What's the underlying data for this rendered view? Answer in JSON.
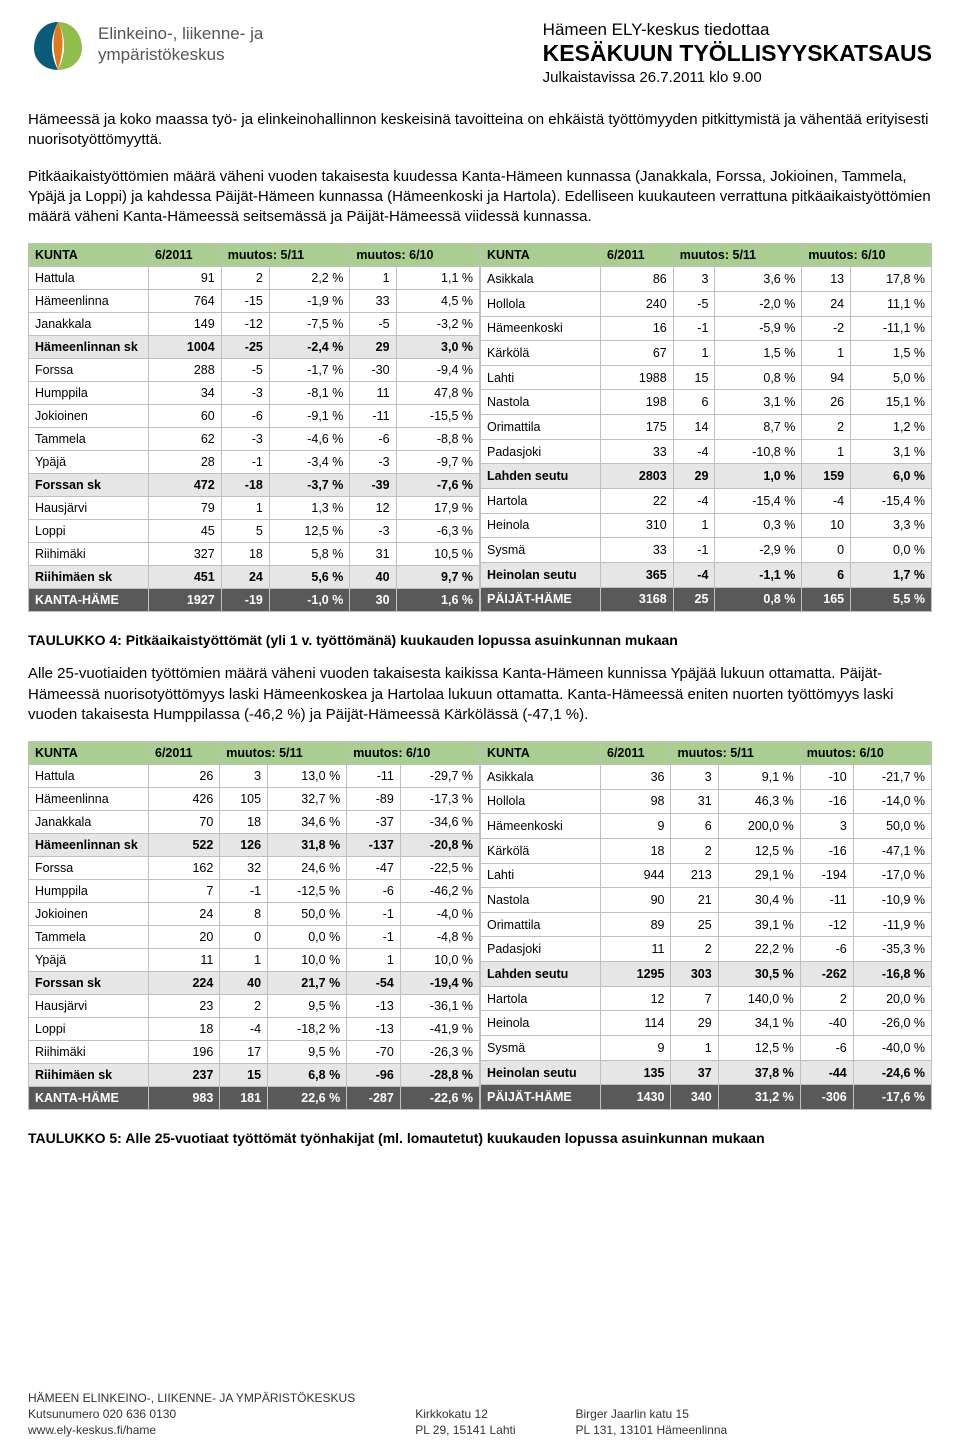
{
  "logo_text": "Elinkeino-, liikenne- ja\nympäristökeskus",
  "header": {
    "line1": "Hämeen ELY-keskus tiedottaa",
    "line2": "KESÄKUUN TYÖLLISYYSKATSAUS",
    "line3": "Julkaistavissa 26.7.2011 klo 9.00"
  },
  "para1": "Hämeessä ja koko maassa työ- ja elinkeinohallinnon keskeisinä tavoitteina on ehkäistä työttömyyden pitkittymistä ja vähentää erityisesti nuorisotyöttömyyttä.",
  "para2": "Pitkäaikaistyöttömien määrä väheni vuoden takaisesta kuudessa Kanta-Hämeen kunnassa (Janakkala, Forssa, Jokioinen, Tammela, Ypäjä ja Loppi) ja kahdessa Päijät-Hämeen kunnassa (Hämeenkoski ja Hartola). Edelliseen kuukauteen verrattuna pitkäaikaistyöttömien määrä väheni Kanta-Hämeessä seitsemässä ja Päijät-Hämeessä viidessä kunnassa.",
  "cols": [
    "KUNTA",
    "6/2011",
    "muutos: 5/11",
    "",
    "muutos: 6/10",
    ""
  ],
  "t4_left": [
    {
      "n": "Hattula",
      "v": [
        "91",
        "2",
        "2,2 %",
        "1",
        "1,1 %"
      ]
    },
    {
      "n": "Hämeenlinna",
      "v": [
        "764",
        "-15",
        "-1,9 %",
        "33",
        "4,5 %"
      ]
    },
    {
      "n": "Janakkala",
      "v": [
        "149",
        "-12",
        "-7,5 %",
        "-5",
        "-3,2 %"
      ]
    },
    {
      "n": "Hämeenlinnan sk",
      "v": [
        "1004",
        "-25",
        "-2,4 %",
        "29",
        "3,0 %"
      ],
      "s": 1
    },
    {
      "n": "Forssa",
      "v": [
        "288",
        "-5",
        "-1,7 %",
        "-30",
        "-9,4 %"
      ]
    },
    {
      "n": "Humppila",
      "v": [
        "34",
        "-3",
        "-8,1 %",
        "11",
        "47,8 %"
      ]
    },
    {
      "n": "Jokioinen",
      "v": [
        "60",
        "-6",
        "-9,1 %",
        "-11",
        "-15,5 %"
      ]
    },
    {
      "n": "Tammela",
      "v": [
        "62",
        "-3",
        "-4,6 %",
        "-6",
        "-8,8 %"
      ]
    },
    {
      "n": "Ypäjä",
      "v": [
        "28",
        "-1",
        "-3,4 %",
        "-3",
        "-9,7 %"
      ]
    },
    {
      "n": "Forssan sk",
      "v": [
        "472",
        "-18",
        "-3,7 %",
        "-39",
        "-7,6 %"
      ],
      "s": 1
    },
    {
      "n": "Hausjärvi",
      "v": [
        "79",
        "1",
        "1,3 %",
        "12",
        "17,9 %"
      ]
    },
    {
      "n": "Loppi",
      "v": [
        "45",
        "5",
        "12,5 %",
        "-3",
        "-6,3 %"
      ]
    },
    {
      "n": "Riihimäki",
      "v": [
        "327",
        "18",
        "5,8 %",
        "31",
        "10,5 %"
      ]
    },
    {
      "n": "Riihimäen sk",
      "v": [
        "451",
        "24",
        "5,6 %",
        "40",
        "9,7 %"
      ],
      "s": 1
    },
    {
      "n": "KANTA-HÄME",
      "v": [
        "1927",
        "-19",
        "-1,0 %",
        "30",
        "1,6 %"
      ],
      "t": 1
    }
  ],
  "t4_right": [
    {
      "n": "Asikkala",
      "v": [
        "86",
        "3",
        "3,6 %",
        "13",
        "17,8 %"
      ]
    },
    {
      "n": "Hollola",
      "v": [
        "240",
        "-5",
        "-2,0 %",
        "24",
        "11,1 %"
      ]
    },
    {
      "n": "Hämeenkoski",
      "v": [
        "16",
        "-1",
        "-5,9 %",
        "-2",
        "-11,1 %"
      ]
    },
    {
      "n": "Kärkölä",
      "v": [
        "67",
        "1",
        "1,5 %",
        "1",
        "1,5 %"
      ]
    },
    {
      "n": "Lahti",
      "v": [
        "1988",
        "15",
        "0,8 %",
        "94",
        "5,0 %"
      ]
    },
    {
      "n": "Nastola",
      "v": [
        "198",
        "6",
        "3,1 %",
        "26",
        "15,1 %"
      ]
    },
    {
      "n": "Orimattila",
      "v": [
        "175",
        "14",
        "8,7 %",
        "2",
        "1,2 %"
      ]
    },
    {
      "n": "Padasjoki",
      "v": [
        "33",
        "-4",
        "-10,8 %",
        "1",
        "3,1 %"
      ]
    },
    {
      "n": "Lahden seutu",
      "v": [
        "2803",
        "29",
        "1,0 %",
        "159",
        "6,0 %"
      ],
      "s": 1
    },
    {
      "n": "Hartola",
      "v": [
        "22",
        "-4",
        "-15,4 %",
        "-4",
        "-15,4 %"
      ]
    },
    {
      "n": "Heinola",
      "v": [
        "310",
        "1",
        "0,3 %",
        "10",
        "3,3 %"
      ]
    },
    {
      "n": "Sysmä",
      "v": [
        "33",
        "-1",
        "-2,9 %",
        "0",
        "0,0 %"
      ]
    },
    {
      "n": "Heinolan seutu",
      "v": [
        "365",
        "-4",
        "-1,1 %",
        "6",
        "1,7 %"
      ],
      "s": 1
    },
    {
      "n": "PÄIJÄT-HÄME",
      "v": [
        "3168",
        "25",
        "0,8 %",
        "165",
        "5,5 %"
      ],
      "t": 1
    }
  ],
  "caption4": "TAULUKKO 4: Pitkäaikaistyöttömät (yli 1 v. työttömänä) kuukauden lopussa asuinkunnan mukaan",
  "para3": "Alle 25-vuotiaiden työttömien määrä väheni vuoden takaisesta kaikissa Kanta-Hämeen kunnissa Ypäjää lukuun ottamatta. Päijät-Hämeessä nuorisotyöttömyys laski Hämeenkoskea ja Hartolaa lukuun ottamatta. Kanta-Hämeessä eniten nuorten työttömyys laski vuoden takaisesta Humppilassa (-46,2 %) ja Päijät-Hämeessä Kärkölässä (-47,1 %).",
  "t5_left": [
    {
      "n": "Hattula",
      "v": [
        "26",
        "3",
        "13,0 %",
        "-11",
        "-29,7 %"
      ]
    },
    {
      "n": "Hämeenlinna",
      "v": [
        "426",
        "105",
        "32,7 %",
        "-89",
        "-17,3 %"
      ]
    },
    {
      "n": "Janakkala",
      "v": [
        "70",
        "18",
        "34,6 %",
        "-37",
        "-34,6 %"
      ]
    },
    {
      "n": "Hämeenlinnan sk",
      "v": [
        "522",
        "126",
        "31,8 %",
        "-137",
        "-20,8 %"
      ],
      "s": 1
    },
    {
      "n": "Forssa",
      "v": [
        "162",
        "32",
        "24,6 %",
        "-47",
        "-22,5 %"
      ]
    },
    {
      "n": "Humppila",
      "v": [
        "7",
        "-1",
        "-12,5 %",
        "-6",
        "-46,2 %"
      ]
    },
    {
      "n": "Jokioinen",
      "v": [
        "24",
        "8",
        "50,0 %",
        "-1",
        "-4,0 %"
      ]
    },
    {
      "n": "Tammela",
      "v": [
        "20",
        "0",
        "0,0 %",
        "-1",
        "-4,8 %"
      ]
    },
    {
      "n": "Ypäjä",
      "v": [
        "11",
        "1",
        "10,0 %",
        "1",
        "10,0 %"
      ]
    },
    {
      "n": "Forssan sk",
      "v": [
        "224",
        "40",
        "21,7 %",
        "-54",
        "-19,4 %"
      ],
      "s": 1
    },
    {
      "n": "Hausjärvi",
      "v": [
        "23",
        "2",
        "9,5 %",
        "-13",
        "-36,1 %"
      ]
    },
    {
      "n": "Loppi",
      "v": [
        "18",
        "-4",
        "-18,2 %",
        "-13",
        "-41,9 %"
      ]
    },
    {
      "n": "Riihimäki",
      "v": [
        "196",
        "17",
        "9,5 %",
        "-70",
        "-26,3 %"
      ]
    },
    {
      "n": "Riihimäen sk",
      "v": [
        "237",
        "15",
        "6,8 %",
        "-96",
        "-28,8 %"
      ],
      "s": 1
    },
    {
      "n": "KANTA-HÄME",
      "v": [
        "983",
        "181",
        "22,6 %",
        "-287",
        "-22,6 %"
      ],
      "t": 1
    }
  ],
  "t5_right": [
    {
      "n": "Asikkala",
      "v": [
        "36",
        "3",
        "9,1 %",
        "-10",
        "-21,7 %"
      ]
    },
    {
      "n": "Hollola",
      "v": [
        "98",
        "31",
        "46,3 %",
        "-16",
        "-14,0 %"
      ]
    },
    {
      "n": "Hämeenkoski",
      "v": [
        "9",
        "6",
        "200,0 %",
        "3",
        "50,0 %"
      ]
    },
    {
      "n": "Kärkölä",
      "v": [
        "18",
        "2",
        "12,5 %",
        "-16",
        "-47,1 %"
      ]
    },
    {
      "n": "Lahti",
      "v": [
        "944",
        "213",
        "29,1 %",
        "-194",
        "-17,0 %"
      ]
    },
    {
      "n": "Nastola",
      "v": [
        "90",
        "21",
        "30,4 %",
        "-11",
        "-10,9 %"
      ]
    },
    {
      "n": "Orimattila",
      "v": [
        "89",
        "25",
        "39,1 %",
        "-12",
        "-11,9 %"
      ]
    },
    {
      "n": "Padasjoki",
      "v": [
        "11",
        "2",
        "22,2 %",
        "-6",
        "-35,3 %"
      ]
    },
    {
      "n": "Lahden seutu",
      "v": [
        "1295",
        "303",
        "30,5 %",
        "-262",
        "-16,8 %"
      ],
      "s": 1
    },
    {
      "n": "Hartola",
      "v": [
        "12",
        "7",
        "140,0 %",
        "2",
        "20,0 %"
      ]
    },
    {
      "n": "Heinola",
      "v": [
        "114",
        "29",
        "34,1 %",
        "-40",
        "-26,0 %"
      ]
    },
    {
      "n": "Sysmä",
      "v": [
        "9",
        "1",
        "12,5 %",
        "-6",
        "-40,0 %"
      ]
    },
    {
      "n": "Heinolan seutu",
      "v": [
        "135",
        "37",
        "37,8 %",
        "-44",
        "-24,6 %"
      ],
      "s": 1
    },
    {
      "n": "PÄIJÄT-HÄME",
      "v": [
        "1430",
        "340",
        "31,2 %",
        "-306",
        "-17,6 %"
      ],
      "t": 1
    }
  ],
  "caption5": "TAULUKKO 5: Alle 25-vuotiaat työttömät työnhakijat (ml. lomautetut) kuukauden lopussa asuinkunnan mukaan",
  "footer": {
    "c1a": "HÄMEEN ELINKEINO-, LIIKENNE- JA YMPÄRISTÖKESKUS",
    "c1b": "Kutsunumero 020 636 0130",
    "c1c": "www.ely-keskus.fi/hame",
    "c2a": "Kirkkokatu 12",
    "c2b": "PL 29, 15141 Lahti",
    "c3a": "Birger Jaarlin katu 15",
    "c3b": "PL 131, 13101 Hämeenlinna"
  }
}
